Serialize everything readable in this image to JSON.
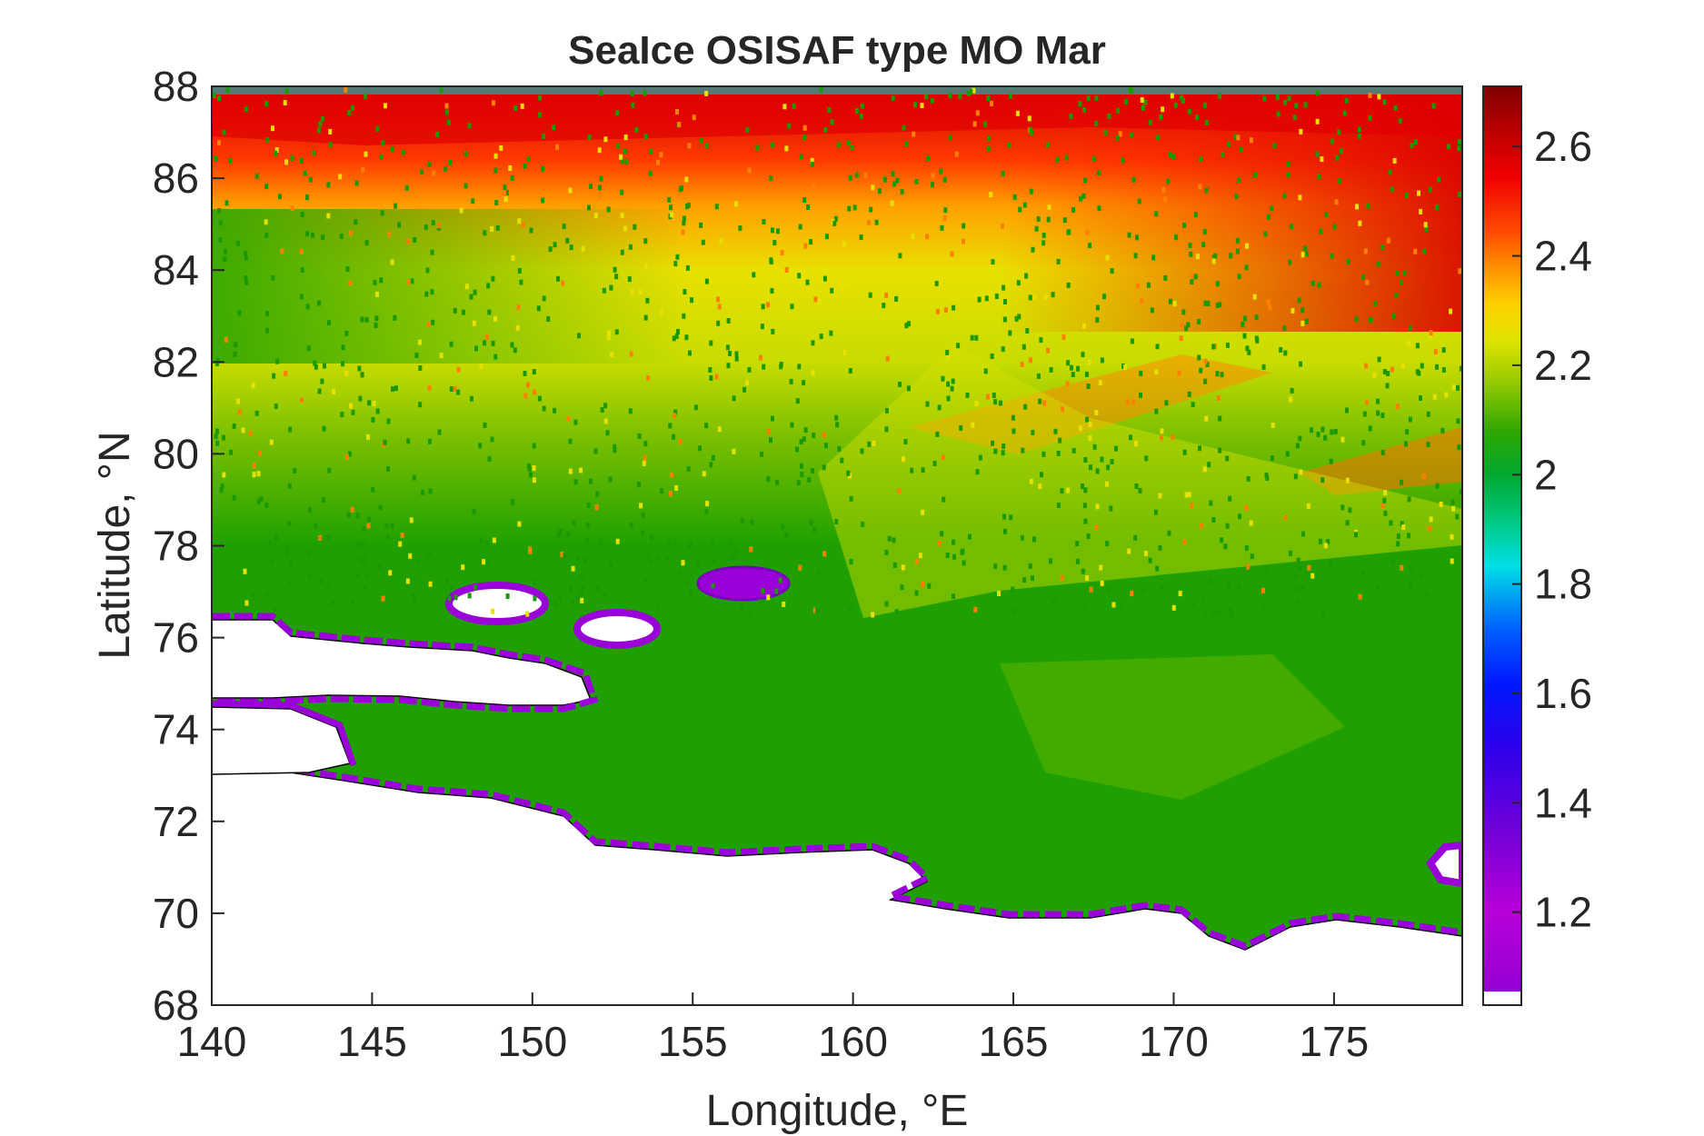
{
  "chart_data": {
    "type": "heatmap",
    "title": "SeaIce OSISAF type MO Mar",
    "xlabel": "Longitude, °E",
    "ylabel": "Latitude, °N",
    "xlim": [
      140,
      179
    ],
    "ylim": [
      68,
      88
    ],
    "xticks": [
      140,
      145,
      150,
      155,
      160,
      165,
      170,
      175
    ],
    "yticks": [
      68,
      70,
      72,
      74,
      76,
      78,
      80,
      82,
      84,
      86,
      88
    ],
    "colorbar": {
      "range": [
        1.03,
        2.71
      ],
      "ticks": [
        1.2,
        1.4,
        1.6,
        1.8,
        2,
        2.2,
        2.4,
        2.6
      ],
      "colors": [
        "#9400d3",
        "#b800d8",
        "#6a00d8",
        "#2c00e8",
        "#0010ff",
        "#0058ff",
        "#00a0f0",
        "#00d8e8",
        "#00c890",
        "#00a830",
        "#20a000",
        "#60b400",
        "#a0cc00",
        "#d8e000",
        "#ffe000",
        "#ffb000",
        "#ff7a00",
        "#ff3000",
        "#e00000",
        "#a80000",
        "#800000"
      ]
    },
    "grid": false,
    "colormap": "jet-like (purple → blue → cyan → green → yellow → red → dark red)",
    "annotations": "Land masses shown in white with black coastlines (Siberian coast, New Siberian Islands, De Long Islands, Wrangel Island). Values increase northward: ~2.0 (green) over the East Siberian Sea, ~2.2–2.3 (yellow) near 82–84°N, ~2.5–2.7 (red) near 86–88°N; purple (~1.1–1.3) fringes along the coasts."
  }
}
